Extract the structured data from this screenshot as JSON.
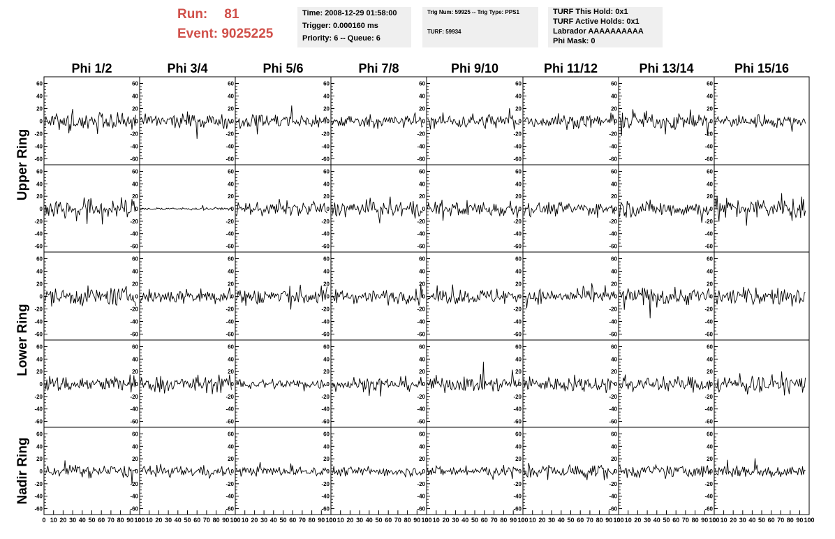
{
  "header": {
    "run_label": "Run:",
    "run_value": "81",
    "event_label": "Event:",
    "event_value": "9025225",
    "time_line": "Time: 2008-12-29 01:58:00",
    "trigger_line": "Trigger: 0.000160 ms",
    "priority_line": "Priority: 6 -- Queue: 6",
    "trig_line": "Trig Num: 59925 -- Trig Type: PPS1",
    "turf_line": "TURF: 59934",
    "turf_hold_line": "TURF This Hold: 0x1",
    "turf_active_line": "TURF Active Holds: 0x1",
    "labrador_line": "Labrador AAAAAAAAAA",
    "phi_mask_line": "Phi Mask: 0"
  },
  "chart_data": {
    "type": "line",
    "column_titles": [
      "Phi 1/2",
      "Phi 3/4",
      "Phi 5/6",
      "Phi 7/8",
      "Phi 9/10",
      "Phi 11/12",
      "Phi 13/14",
      "Phi 15/16"
    ],
    "row_titles": [
      "Upper Ring",
      "Upper Ring",
      "Lower Ring",
      "Lower Ring",
      "Nadir Ring"
    ],
    "xlim": [
      0,
      100
    ],
    "ylim": [
      -65,
      65
    ],
    "y_ticks": [
      -60,
      -40,
      -20,
      0,
      20,
      40,
      60
    ],
    "x_ticks": [
      0,
      10,
      20,
      30,
      40,
      50,
      60,
      70,
      80,
      90,
      100
    ],
    "x_tick_labels": [
      "0",
      "10",
      "20",
      "30",
      "40",
      "50",
      "60",
      "70",
      "80",
      "90",
      "100"
    ],
    "samples_per_trace": 96,
    "grid": false,
    "trace_color": "#000000",
    "amplitudes": [
      [
        13,
        10,
        11,
        9,
        11,
        9,
        12,
        9
      ],
      [
        15,
        2,
        10,
        12,
        12,
        10,
        12,
        15
      ],
      [
        13,
        11,
        14,
        10,
        11,
        10,
        13,
        12
      ],
      [
        12,
        12,
        8,
        10,
        11,
        11,
        11,
        13
      ],
      [
        9,
        8,
        7,
        7,
        8,
        11,
        9,
        10
      ]
    ]
  }
}
